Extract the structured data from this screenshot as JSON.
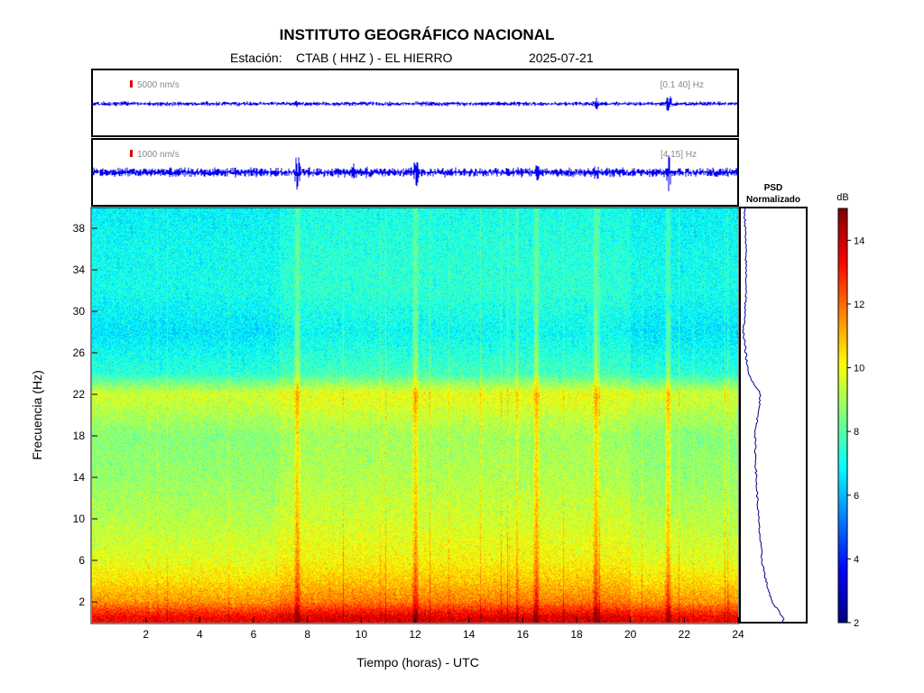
{
  "header": {
    "title": "INSTITUTO GEOGRÁFICO NACIONAL",
    "station_label": "Estación:",
    "station": "CTAB ( HHZ ) - EL HIERRO",
    "date": "2025-07-21"
  },
  "traces": [
    {
      "scale": "5000 nm/s",
      "band": "[0.1 40] Hz"
    },
    {
      "scale": "1000 nm/s",
      "band": "[4 15] Hz"
    }
  ],
  "psd": {
    "title_line1": "PSD",
    "title_line2": "Normalizado"
  },
  "colorbar": {
    "unit": "dB",
    "ticks": [
      2,
      4,
      6,
      8,
      10,
      12,
      14
    ],
    "range": [
      2,
      15
    ]
  },
  "colors": {
    "trace": "#0000ee",
    "scale_marker": "#dd0000",
    "psd_line": "#00008b"
  },
  "chart_data": {
    "type": "heatmap",
    "xlabel": "Tiempo (horas) - UTC",
    "ylabel": "Frecuencia  (Hz)",
    "xlim": [
      0,
      24
    ],
    "ylim": [
      0,
      40
    ],
    "xticks": [
      2,
      4,
      6,
      8,
      10,
      12,
      14,
      16,
      18,
      20,
      22,
      24
    ],
    "yticks": [
      2,
      6,
      10,
      14,
      18,
      22,
      26,
      30,
      34,
      38
    ],
    "approx_power_db_by_frequency": [
      {
        "hz": 0.5,
        "db": 13.5
      },
      {
        "hz": 2,
        "db": 11.5
      },
      {
        "hz": 4,
        "db": 10.5
      },
      {
        "hz": 6,
        "db": 9.8
      },
      {
        "hz": 10,
        "db": 9.2
      },
      {
        "hz": 14,
        "db": 8.8
      },
      {
        "hz": 18,
        "db": 8.6
      },
      {
        "hz": 22,
        "db": 9.6
      },
      {
        "hz": 24,
        "db": 7.4
      },
      {
        "hz": 28,
        "db": 6.6
      },
      {
        "hz": 32,
        "db": 7.1
      },
      {
        "hz": 36,
        "db": 7.0
      },
      {
        "hz": 40,
        "db": 6.8
      }
    ],
    "bright_vertical_events_hours": [
      7.6,
      12.0,
      16.5,
      18.7,
      21.4
    ]
  }
}
